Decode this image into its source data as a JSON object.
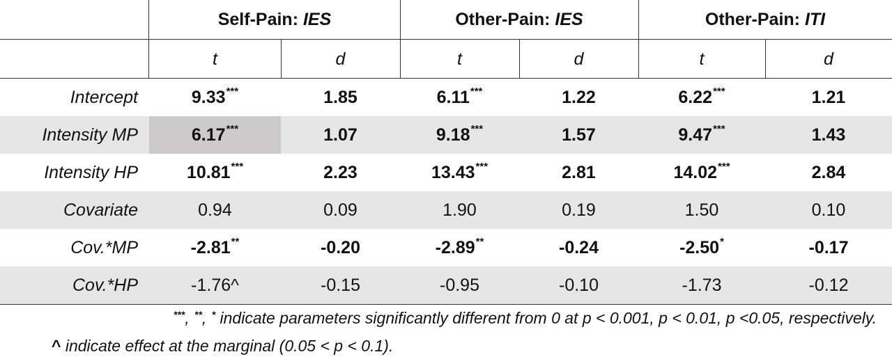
{
  "groups": [
    {
      "prefix": "Self-Pain: ",
      "measure": "IES"
    },
    {
      "prefix": "Other-Pain: ",
      "measure": "IES"
    },
    {
      "prefix": "Other-Pain: ",
      "measure": "ITI"
    }
  ],
  "subheaders": [
    "t",
    "d",
    "t",
    "d",
    "t",
    "d"
  ],
  "rows": [
    {
      "label": "Intercept",
      "cells": [
        {
          "v": "9.33",
          "sig": "***"
        },
        {
          "v": "1.85"
        },
        {
          "v": "6.11",
          "sig": "***"
        },
        {
          "v": "1.22"
        },
        {
          "v": "6.22",
          "sig": "***"
        },
        {
          "v": "1.21"
        }
      ]
    },
    {
      "label": "Intensity MP",
      "cells": [
        {
          "v": "6.17",
          "sig": "***"
        },
        {
          "v": "1.07"
        },
        {
          "v": "9.18",
          "sig": "***"
        },
        {
          "v": "1.57"
        },
        {
          "v": "9.47",
          "sig": "***"
        },
        {
          "v": "1.43"
        }
      ]
    },
    {
      "label": "Intensity HP",
      "cells": [
        {
          "v": "10.81",
          "sig": "***"
        },
        {
          "v": "2.23"
        },
        {
          "v": "13.43",
          "sig": "***"
        },
        {
          "v": "2.81"
        },
        {
          "v": "14.02",
          "sig": "***"
        },
        {
          "v": "2.84"
        }
      ]
    },
    {
      "label": "Covariate",
      "cells": [
        {
          "v": "0.94"
        },
        {
          "v": "0.09"
        },
        {
          "v": "1.90"
        },
        {
          "v": "0.19"
        },
        {
          "v": "1.50"
        },
        {
          "v": "0.10"
        }
      ]
    },
    {
      "label": "Cov.*MP",
      "cells": [
        {
          "v": "-2.81",
          "sig": "**"
        },
        {
          "v": "-0.20"
        },
        {
          "v": "-2.89",
          "sig": "**"
        },
        {
          "v": "-0.24"
        },
        {
          "v": "-2.50",
          "sig": "*"
        },
        {
          "v": "-0.17"
        }
      ]
    },
    {
      "label": "Cov.*HP",
      "cells": [
        {
          "v": "-1.76^"
        },
        {
          "v": "-0.15"
        },
        {
          "v": "-0.95"
        },
        {
          "v": "-0.10"
        },
        {
          "v": "-1.73"
        },
        {
          "v": "-0.12"
        }
      ]
    }
  ],
  "footnotes": {
    "sig_marks": [
      "***",
      "**",
      "*"
    ],
    "sig_sep": ", ",
    "sig_text": " indicate parameters significantly different from 0 at p < 0.001, p < 0.01, p <0.05, respectively.",
    "marginal_mark": "^",
    "marginal_text": " indicate effect at the marginal (0.05 < p < 0.1)."
  },
  "colors": {
    "row_shade": "#e6e6e6",
    "selected_cell": "#cccaca",
    "rules": "#333333"
  }
}
